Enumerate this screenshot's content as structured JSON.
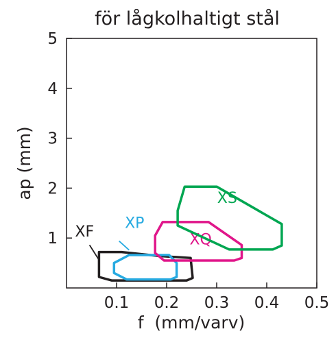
{
  "chart_data": {
    "type": "area",
    "title": "för lågkolhaltigt stål",
    "xlabel": "f  (mm/varv)",
    "ylabel": "ap (mm)",
    "xlim": [
      0,
      0.5
    ],
    "ylim": [
      0,
      5
    ],
    "xticks": [
      "0.1",
      "0.2",
      "0.3",
      "0.4",
      "0.5"
    ],
    "yticks": [
      "1",
      "2",
      "3",
      "4",
      "5"
    ],
    "grid": false,
    "legend": "none",
    "series": [
      {
        "name": "XF",
        "color": "#231f20",
        "label_at": [
          0.036,
          1.03
        ],
        "leader": [
          [
            0.046,
            0.86
          ],
          [
            0.065,
            0.56
          ]
        ],
        "polygon": [
          [
            0.065,
            0.72
          ],
          [
            0.11,
            0.72
          ],
          [
            0.185,
            0.64
          ],
          [
            0.248,
            0.6
          ],
          [
            0.252,
            0.2
          ],
          [
            0.24,
            0.15
          ],
          [
            0.09,
            0.15
          ],
          [
            0.065,
            0.22
          ]
        ]
      },
      {
        "name": "XP",
        "color": "#27aae1",
        "label_at": [
          0.136,
          1.2
        ],
        "leader": [
          [
            0.105,
            0.94
          ],
          [
            0.125,
            0.76
          ]
        ],
        "polygon": [
          [
            0.095,
            0.5
          ],
          [
            0.125,
            0.66
          ],
          [
            0.205,
            0.66
          ],
          [
            0.22,
            0.5
          ],
          [
            0.22,
            0.22
          ],
          [
            0.208,
            0.17
          ],
          [
            0.12,
            0.17
          ],
          [
            0.095,
            0.3
          ]
        ]
      },
      {
        "name": "XQ",
        "color": "#e0168a",
        "label_at": [
          0.268,
          0.87
        ],
        "polygon": [
          [
            0.177,
            1.05
          ],
          [
            0.192,
            1.32
          ],
          [
            0.284,
            1.32
          ],
          [
            0.35,
            0.86
          ],
          [
            0.35,
            0.6
          ],
          [
            0.335,
            0.55
          ],
          [
            0.195,
            0.55
          ],
          [
            0.177,
            0.7
          ]
        ]
      },
      {
        "name": "XS",
        "color": "#00a651",
        "label_at": [
          0.321,
          1.7
        ],
        "polygon": [
          [
            0.222,
            1.55
          ],
          [
            0.236,
            2.03
          ],
          [
            0.3,
            2.03
          ],
          [
            0.43,
            1.28
          ],
          [
            0.43,
            0.85
          ],
          [
            0.412,
            0.77
          ],
          [
            0.325,
            0.77
          ],
          [
            0.222,
            1.25
          ]
        ]
      }
    ]
  }
}
